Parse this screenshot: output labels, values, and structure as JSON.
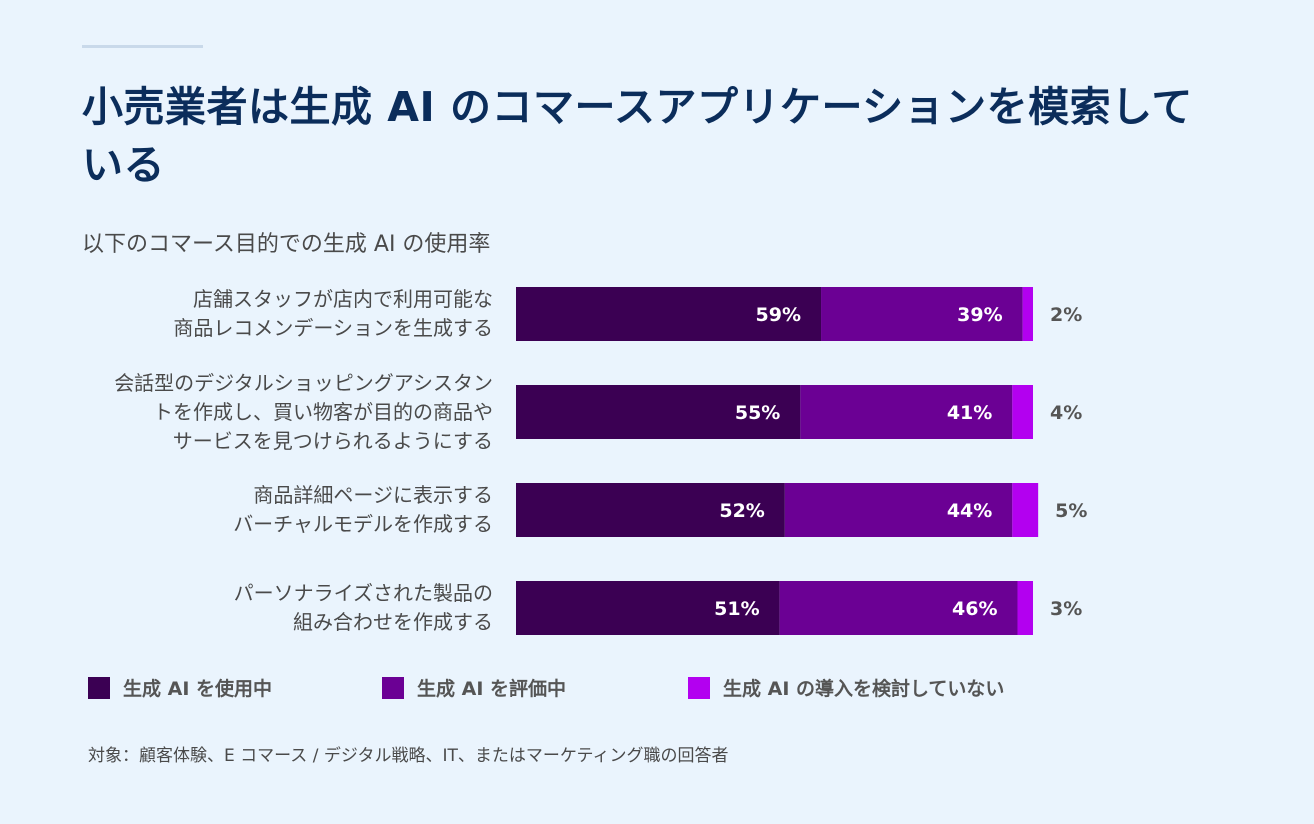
{
  "title": "小売業者は生成 AI のコマースアプリケーションを模索している",
  "subtitle": "以下のコマース目的での生成 AI の使用率",
  "footnote": "対象：顧客体験、E コマース / デジタル戦略、IT、またはマーケティング職の回答者",
  "chart_data": {
    "type": "bar",
    "orientation": "horizontal",
    "stacked": true,
    "categories": [
      "店舗スタッフが店内で利用可能な商品レコメンデーションを生成する",
      "会話型のデジタルショッピングアシスタントを作成し、買い物客が目的の商品やサービスを見つけられるようにする",
      "商品詳細ページに表示するバーチャルモデルを作成する",
      "パーソナライズされた製品の組み合わせを作成する"
    ],
    "category_lines": [
      [
        "店舗スタッフが店内で利用可能な",
        "商品レコメンデーションを生成する"
      ],
      [
        "会話型のデジタルショッピングアシスタン",
        "トを作成し、買い物客が目的の商品や",
        "サービスを見つけられるようにする"
      ],
      [
        "商品詳細ページに表示する",
        "バーチャルモデルを作成する"
      ],
      [
        "パーソナライズされた製品の",
        "組み合わせを作成する"
      ]
    ],
    "series": [
      {
        "name": "生成 AI を使用中",
        "color": "#3b0053",
        "values": [
          59,
          55,
          52,
          51
        ],
        "labels": [
          "59%",
          "55%",
          "52%",
          "51%"
        ]
      },
      {
        "name": "生成 AI を評価中",
        "color": "#6b0094",
        "values": [
          39,
          41,
          44,
          46
        ],
        "labels": [
          "39%",
          "41%",
          "44%",
          "46%"
        ]
      },
      {
        "name": "生成 AI の導入を検討していない",
        "color": "#b300f0",
        "values": [
          2,
          4,
          5,
          3
        ],
        "labels": [
          "2%",
          "4%",
          "5%",
          "3%"
        ]
      }
    ],
    "legend_position": "bottom",
    "grid": false
  }
}
